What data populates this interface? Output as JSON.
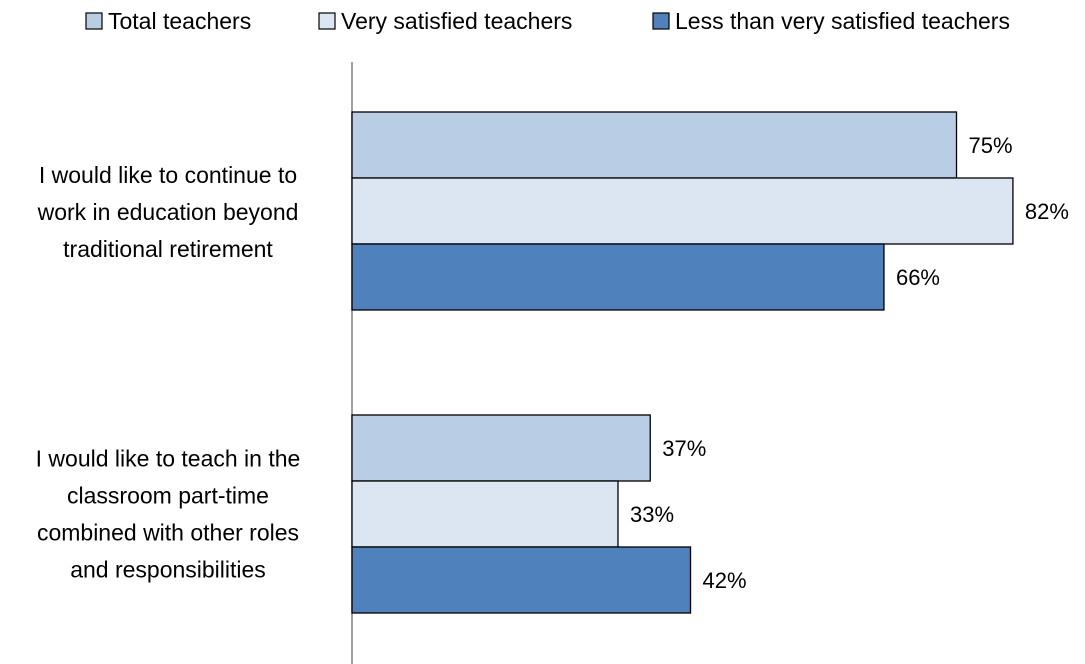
{
  "chart_data": {
    "type": "bar",
    "orientation": "horizontal",
    "categories": [
      "I would like to continue to work in education beyond traditional retirement",
      "I would like to teach in the classroom part-time combined with other roles and responsibilities"
    ],
    "category_lines": [
      [
        "I would like to continue to",
        "work in education beyond",
        "traditional retirement"
      ],
      [
        "I would like to teach in the",
        "classroom part-time",
        "combined with other roles",
        "and responsibilities"
      ]
    ],
    "series": [
      {
        "name": "Total teachers",
        "values": [
          75,
          37
        ],
        "labels": [
          "75%",
          "37%"
        ],
        "color": "#b9cde5"
      },
      {
        "name": "Very satisfied teachers",
        "values": [
          82,
          33
        ],
        "labels": [
          "82%",
          "33%"
        ],
        "color": "#dce6f2"
      },
      {
        "name": "Less than very satisfied teachers",
        "values": [
          66,
          42
        ],
        "labels": [
          "66%",
          "42%"
        ],
        "color": "#4f81bd"
      }
    ],
    "xlim": [
      0,
      82
    ],
    "legend_position": "top",
    "grid": false,
    "unit": "%"
  }
}
